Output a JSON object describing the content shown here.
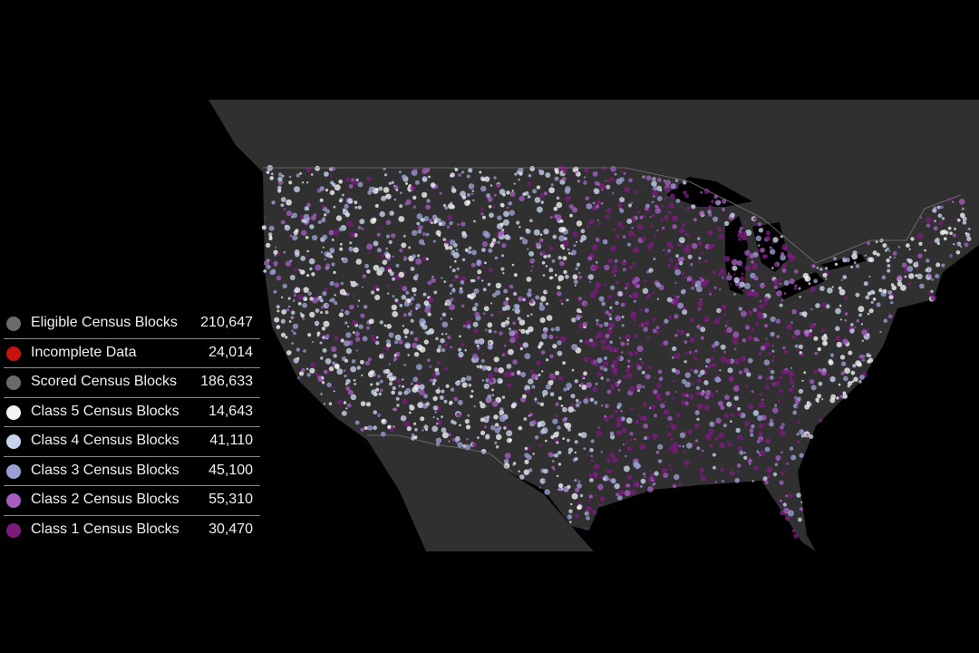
{
  "legend": {
    "items": [
      {
        "label": "Eligible Census Blocks",
        "value": "210,647",
        "color": "#6b6b6b"
      },
      {
        "label": "Incomplete Data",
        "value": "24,014",
        "color": "#c8120f"
      },
      {
        "label": "Scored Census Blocks",
        "value": "186,633",
        "color": "#6b6b6b"
      },
      {
        "label": "Class 5 Census Blocks",
        "value": "14,643",
        "color": "#f3f3f6"
      },
      {
        "label": "Class 4 Census Blocks",
        "value": "41,110",
        "color": "#c6d3ea"
      },
      {
        "label": "Class 3 Census Blocks",
        "value": "45,100",
        "color": "#9a9fd2"
      },
      {
        "label": "Class 2 Census Blocks",
        "value": "55,310",
        "color": "#a45cc0"
      },
      {
        "label": "Class 1 Census Blocks",
        "value": "30,470",
        "color": "#7a1b7d"
      }
    ]
  }
}
